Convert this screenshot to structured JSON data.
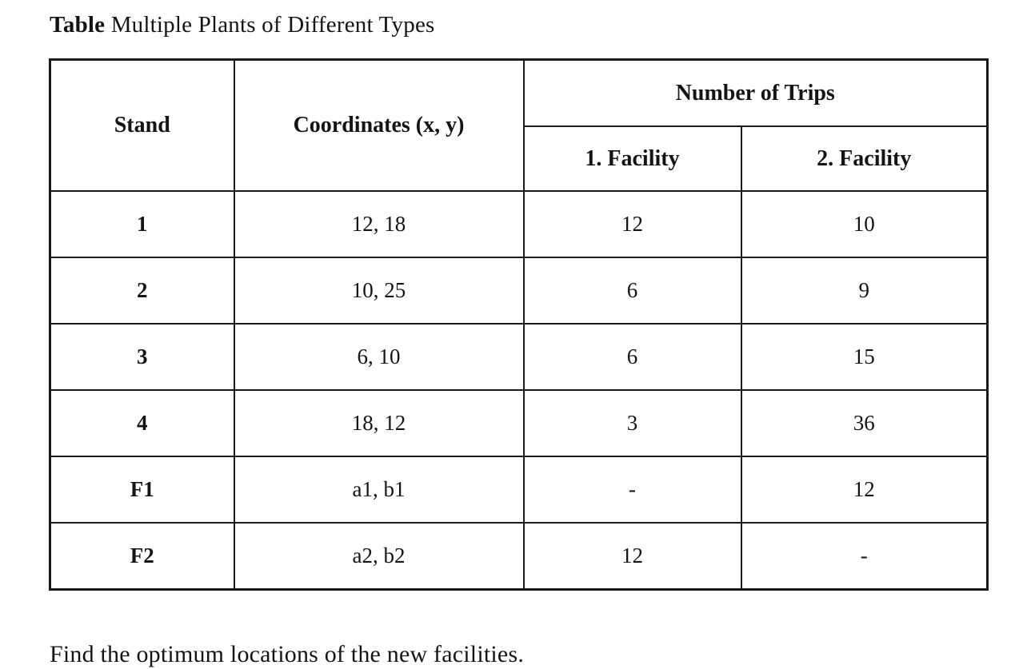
{
  "page": {
    "title_bold": "Table",
    "title_rest": " Multiple Plants of Different Types",
    "footer_text": "Find the optimum locations of the new facilities."
  },
  "table": {
    "headers": {
      "stand": "Stand",
      "coordinates": "Coordinates (x, y)",
      "trips_group": "Number of Trips",
      "facility1": "1. Facility",
      "facility2": "2. Facility"
    },
    "rows": [
      {
        "stand": "1",
        "coordinates": "12, 18",
        "facility1": "12",
        "facility2": "10"
      },
      {
        "stand": "2",
        "coordinates": "10, 25",
        "facility1": "6",
        "facility2": "9"
      },
      {
        "stand": "3",
        "coordinates": "6, 10",
        "facility1": "6",
        "facility2": "15"
      },
      {
        "stand": "4",
        "coordinates": "18, 12",
        "facility1": "3",
        "facility2": "36"
      },
      {
        "stand": "F1",
        "coordinates": "a1, b1",
        "facility1": "-",
        "facility2": "12"
      },
      {
        "stand": "F2",
        "coordinates": "a2, b2",
        "facility1": "12",
        "facility2": "-"
      }
    ]
  },
  "chart_data": {
    "type": "table",
    "title": "Table Multiple Plants of Different Types",
    "columns": [
      "Stand",
      "Coordinates (x, y)",
      "Number of Trips - 1. Facility",
      "Number of Trips - 2. Facility"
    ],
    "rows": [
      [
        "1",
        "12, 18",
        "12",
        "10"
      ],
      [
        "2",
        "10, 25",
        "6",
        "9"
      ],
      [
        "3",
        "6, 10",
        "6",
        "15"
      ],
      [
        "4",
        "18, 12",
        "3",
        "36"
      ],
      [
        "F1",
        "a1, b1",
        "-",
        "12"
      ],
      [
        "F2",
        "a2, b2",
        "12",
        "-"
      ]
    ]
  }
}
